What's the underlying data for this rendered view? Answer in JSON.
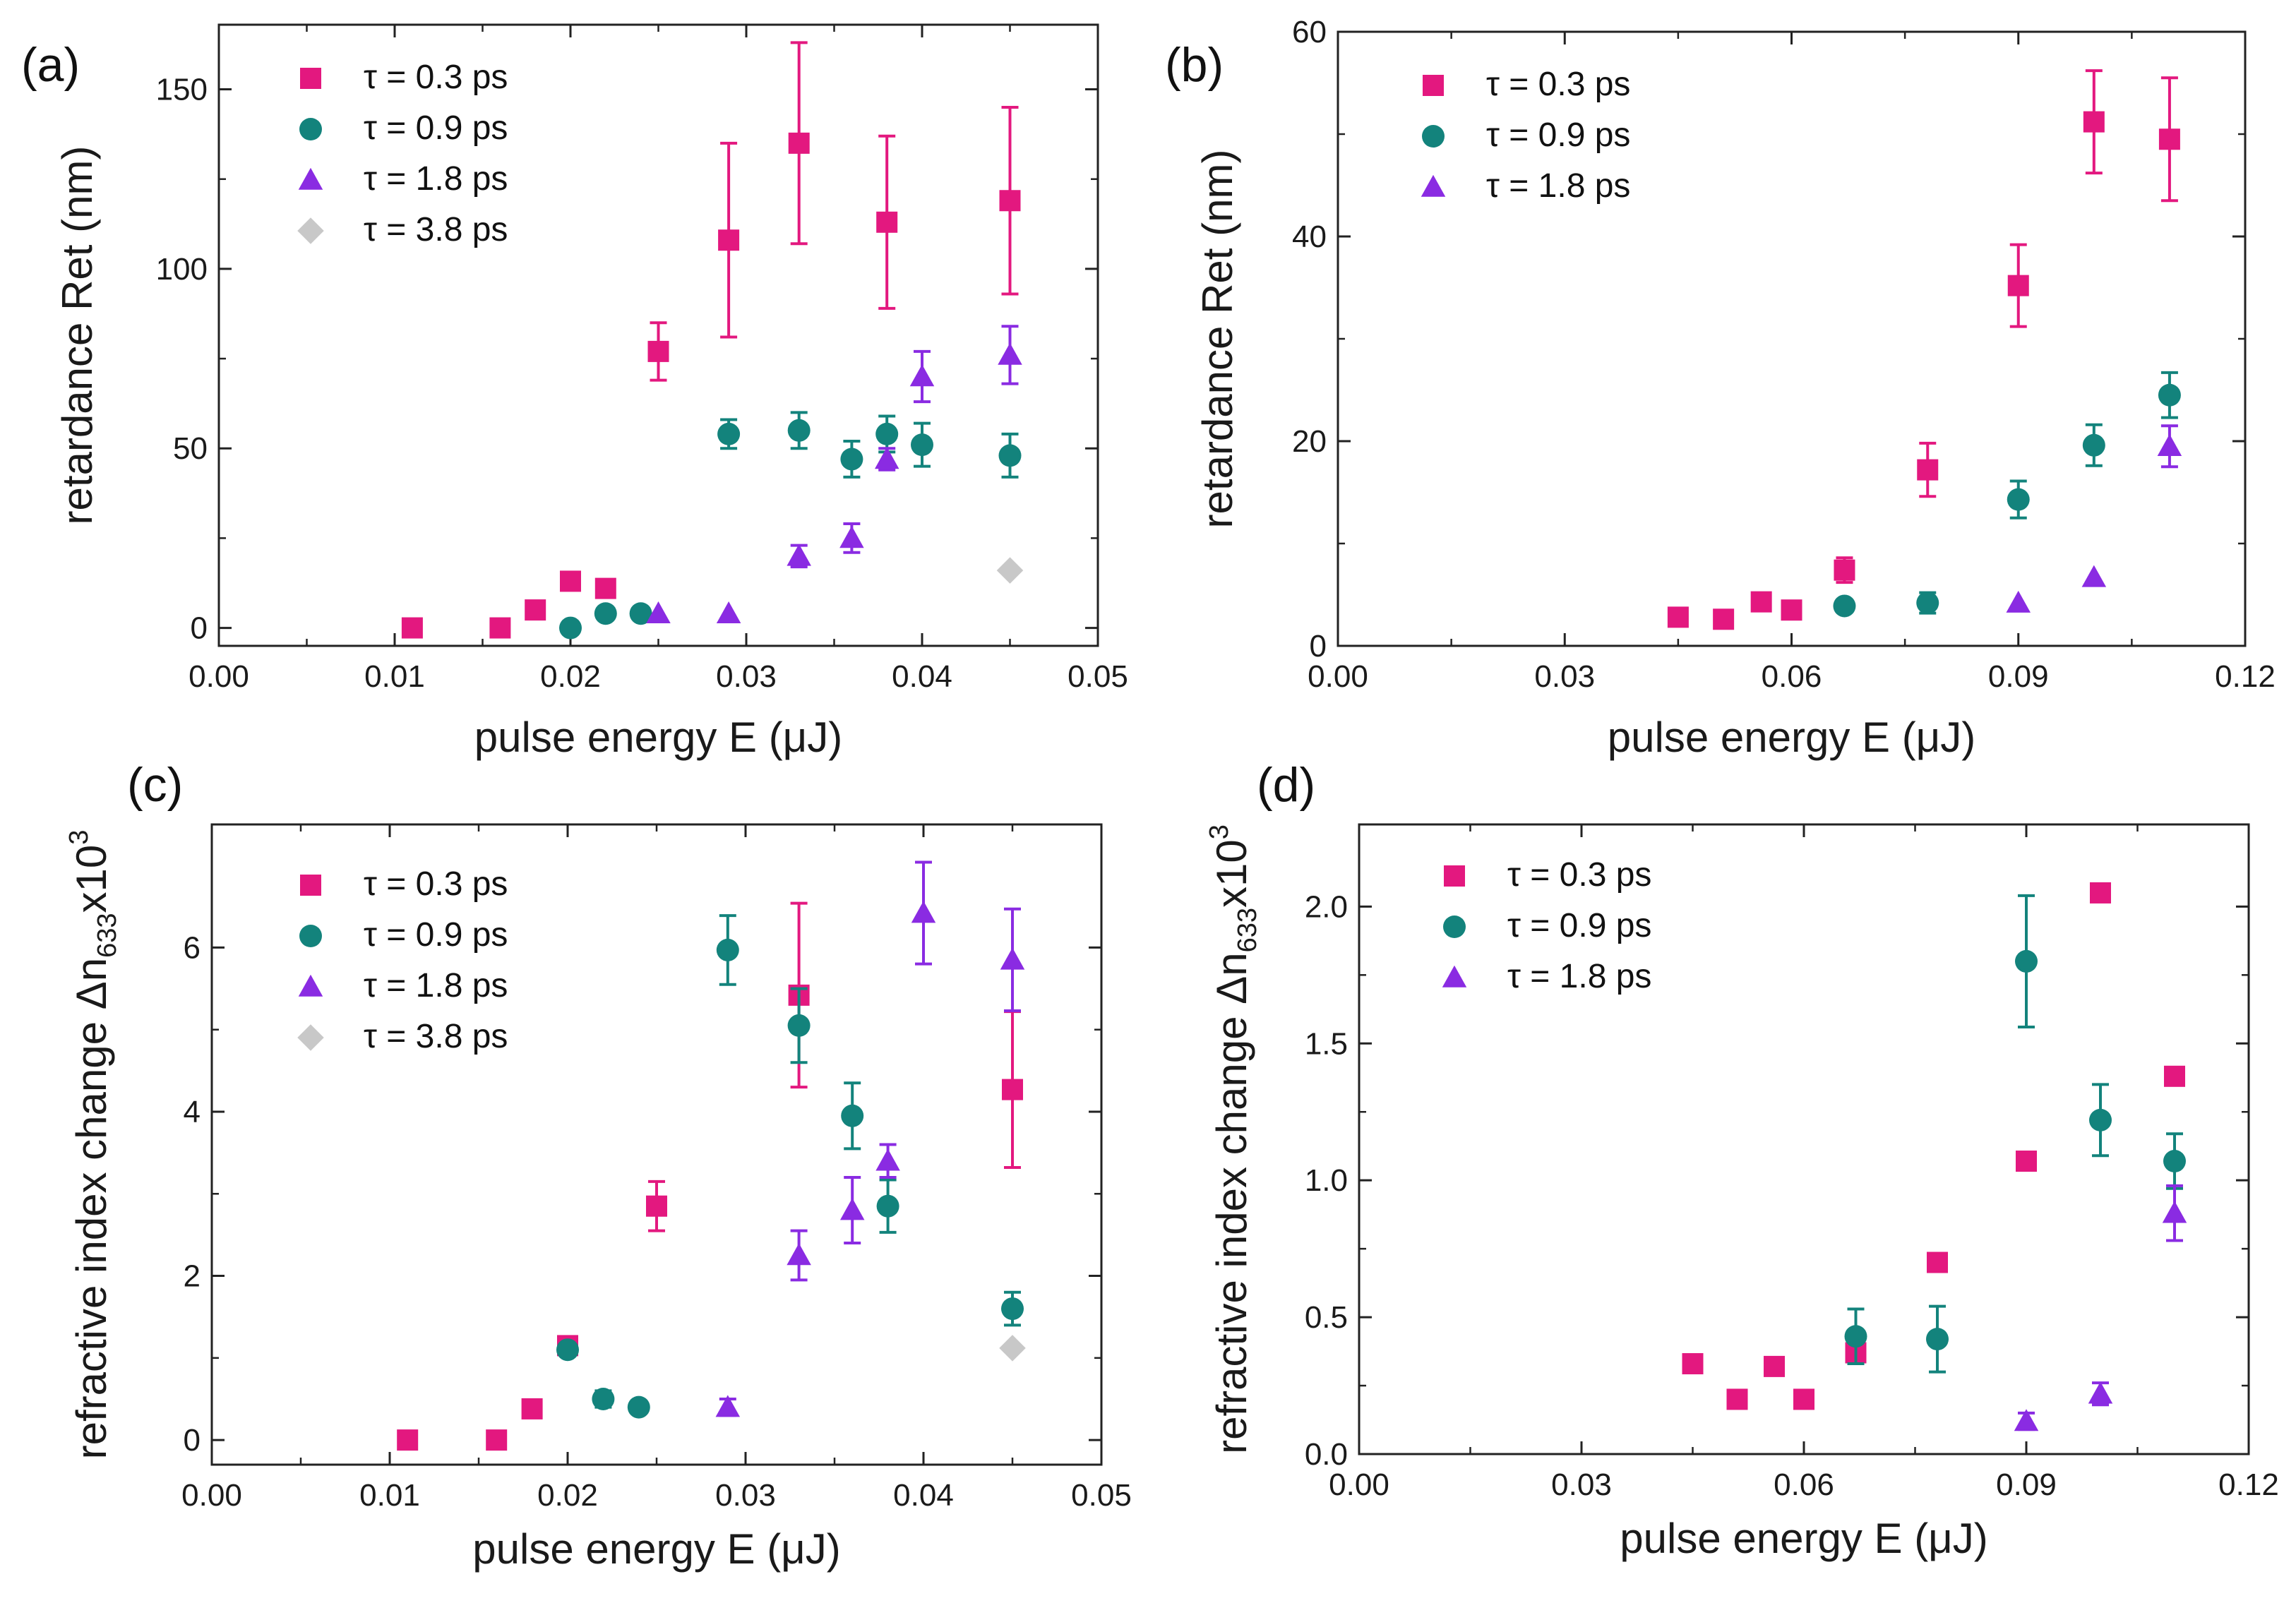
{
  "colors": {
    "tau_0_3": "#e3187f",
    "tau_0_9": "#13837c",
    "tau_1_8": "#8a2be2",
    "tau_3_8": "#c8c8c8"
  },
  "chart_data": [
    {
      "panel_label": "(a)",
      "type": "scatter",
      "xlabel": "pulse energy E (μJ)",
      "ylabel": "retardance Ret (nm)",
      "xlim": [
        0,
        0.05
      ],
      "ylim": [
        -5,
        168
      ],
      "xticks": [
        0.0,
        0.01,
        0.02,
        0.03,
        0.04,
        0.05
      ],
      "xtick_labels": [
        "0.00",
        "0.01",
        "0.02",
        "0.03",
        "0.04",
        "0.05"
      ],
      "yticks": [
        0,
        50,
        100,
        150
      ],
      "ytick_labels": [
        "0",
        "50",
        "100",
        "150"
      ],
      "legend": [
        "τ = 0.3 ps",
        "τ = 0.9 ps",
        "τ = 1.8 ps",
        "τ = 3.8 ps"
      ],
      "series": [
        {
          "name": "τ = 0.3 ps",
          "marker": "square",
          "color_key": "tau_0_3",
          "x": [
            0.011,
            0.016,
            0.018,
            0.02,
            0.022,
            0.025,
            0.029,
            0.033,
            0.038,
            0.045
          ],
          "y": [
            0,
            0,
            5,
            13,
            11,
            77,
            108,
            135,
            113,
            119
          ],
          "err": [
            0,
            0,
            0,
            0,
            0,
            8,
            27,
            28,
            24,
            26
          ]
        },
        {
          "name": "τ = 0.9 ps",
          "marker": "circle",
          "color_key": "tau_0_9",
          "x": [
            0.02,
            0.022,
            0.024,
            0.029,
            0.033,
            0.036,
            0.038,
            0.04,
            0.045
          ],
          "y": [
            0,
            4,
            4,
            54,
            55,
            47,
            54,
            51,
            48
          ],
          "err": [
            0,
            0,
            0,
            4,
            5,
            5,
            5,
            6,
            6
          ]
        },
        {
          "name": "τ = 1.8 ps",
          "marker": "triangle",
          "color_key": "tau_1_8",
          "x": [
            0.025,
            0.029,
            0.033,
            0.036,
            0.038,
            0.04,
            0.045
          ],
          "y": [
            4,
            4,
            20,
            25,
            47,
            70,
            76
          ],
          "err": [
            0,
            0,
            3,
            4,
            3,
            7,
            8
          ]
        },
        {
          "name": "τ = 3.8 ps",
          "marker": "diamond",
          "color_key": "tau_3_8",
          "x": [
            0.045
          ],
          "y": [
            16
          ],
          "err": [
            0
          ]
        }
      ]
    },
    {
      "panel_label": "(b)",
      "type": "scatter",
      "xlabel": "pulse energy E (μJ)",
      "ylabel": "retardance Ret (nm)",
      "xlim": [
        0,
        0.12
      ],
      "ylim": [
        0,
        60
      ],
      "xticks": [
        0.0,
        0.03,
        0.06,
        0.09,
        0.12
      ],
      "xtick_labels": [
        "0.00",
        "0.03",
        "0.06",
        "0.09",
        "0.12"
      ],
      "yticks": [
        0,
        20,
        40,
        60
      ],
      "ytick_labels": [
        "0",
        "20",
        "40",
        "60"
      ],
      "legend": [
        "τ = 0.3 ps",
        "τ = 0.9 ps",
        "τ = 1.8 ps"
      ],
      "series": [
        {
          "name": "τ = 0.3 ps",
          "marker": "square",
          "color_key": "tau_0_3",
          "x": [
            0.045,
            0.051,
            0.056,
            0.06,
            0.067,
            0.078,
            0.09,
            0.1,
            0.11
          ],
          "y": [
            2.8,
            2.6,
            4.3,
            3.5,
            7.4,
            17.2,
            35.2,
            51.2,
            49.5
          ],
          "err": [
            0,
            0,
            0.5,
            0,
            1.2,
            2.6,
            4.0,
            5.0,
            6.0
          ]
        },
        {
          "name": "τ = 0.9 ps",
          "marker": "circle",
          "color_key": "tau_0_9",
          "x": [
            0.067,
            0.078,
            0.09,
            0.1,
            0.11
          ],
          "y": [
            3.9,
            4.2,
            14.3,
            19.6,
            24.5
          ],
          "err": [
            0,
            1.0,
            1.8,
            2.0,
            2.2
          ]
        },
        {
          "name": "τ = 1.8 ps",
          "marker": "triangle",
          "color_key": "tau_1_8",
          "x": [
            0.09,
            0.1,
            0.11
          ],
          "y": [
            4.2,
            6.7,
            19.5
          ],
          "err": [
            0,
            0,
            2.0
          ]
        }
      ]
    },
    {
      "panel_label": "(c)",
      "type": "scatter",
      "xlabel": "pulse energy E (μJ)",
      "ylabel_main": "refractive index change Δn",
      "ylabel_sub": "633",
      "ylabel_mult": "x10",
      "ylabel_sup": "3",
      "xlim": [
        0,
        0.05
      ],
      "ylim": [
        -0.3,
        7.5
      ],
      "xticks": [
        0.0,
        0.01,
        0.02,
        0.03,
        0.04,
        0.05
      ],
      "xtick_labels": [
        "0.00",
        "0.01",
        "0.02",
        "0.03",
        "0.04",
        "0.05"
      ],
      "yticks": [
        0,
        2,
        4,
        6
      ],
      "ytick_labels": [
        "0",
        "2",
        "4",
        "6"
      ],
      "legend": [
        "τ = 0.3 ps",
        "τ = 0.9 ps",
        "τ = 1.8 ps",
        "τ = 3.8 ps"
      ],
      "series": [
        {
          "name": "τ = 0.3 ps",
          "marker": "square",
          "color_key": "tau_0_3",
          "x": [
            0.011,
            0.016,
            0.018,
            0.02,
            0.025,
            0.033,
            0.045
          ],
          "y": [
            0,
            0,
            0.38,
            1.15,
            2.85,
            5.42,
            4.27
          ],
          "err": [
            0,
            0,
            0,
            0.1,
            0.3,
            1.12,
            0.95
          ]
        },
        {
          "name": "τ = 0.9 ps",
          "marker": "circle",
          "color_key": "tau_0_9",
          "x": [
            0.02,
            0.022,
            0.024,
            0.029,
            0.033,
            0.036,
            0.038,
            0.045
          ],
          "y": [
            1.1,
            0.5,
            0.4,
            5.97,
            5.05,
            3.95,
            2.85,
            1.6
          ],
          "err": [
            0,
            0.1,
            0,
            0.42,
            0.45,
            0.4,
            0.32,
            0.2
          ]
        },
        {
          "name": "τ = 1.8 ps",
          "marker": "triangle",
          "color_key": "tau_1_8",
          "x": [
            0.029,
            0.033,
            0.036,
            0.038,
            0.04,
            0.045
          ],
          "y": [
            0.4,
            2.25,
            2.8,
            3.4,
            6.42,
            5.85
          ],
          "err": [
            0.1,
            0.3,
            0.4,
            0.2,
            0.62,
            0.62
          ]
        },
        {
          "name": "τ = 3.8 ps",
          "marker": "diamond",
          "color_key": "tau_3_8",
          "x": [
            0.045
          ],
          "y": [
            1.12
          ],
          "err": [
            0
          ]
        }
      ]
    },
    {
      "panel_label": "(d)",
      "type": "scatter",
      "xlabel": "pulse energy E (μJ)",
      "ylabel_main": "refractive index change Δn",
      "ylabel_sub": "633",
      "ylabel_mult": "x10",
      "ylabel_sup": "3",
      "xlim": [
        0,
        0.12
      ],
      "ylim": [
        0,
        2.3
      ],
      "xticks": [
        0.0,
        0.03,
        0.06,
        0.09,
        0.12
      ],
      "xtick_labels": [
        "0.00",
        "0.03",
        "0.06",
        "0.09",
        "0.12"
      ],
      "yticks": [
        0.0,
        0.5,
        1.0,
        1.5,
        2.0
      ],
      "ytick_labels": [
        "0.0",
        "0.5",
        "1.0",
        "1.5",
        "2.0"
      ],
      "legend": [
        "τ = 0.3 ps",
        "τ = 0.9 ps",
        "τ = 1.8 ps"
      ],
      "series": [
        {
          "name": "τ = 0.3 ps",
          "marker": "square",
          "color_key": "tau_0_3",
          "x": [
            0.045,
            0.051,
            0.056,
            0.06,
            0.067,
            0.078,
            0.09,
            0.1,
            0.11
          ],
          "y": [
            0.33,
            0.2,
            0.32,
            0.2,
            0.37,
            0.7,
            1.07,
            2.05,
            1.38
          ],
          "err": [
            0,
            0,
            0,
            0,
            0,
            0,
            0,
            0,
            0
          ]
        },
        {
          "name": "τ = 0.9 ps",
          "marker": "circle",
          "color_key": "tau_0_9",
          "x": [
            0.067,
            0.078,
            0.09,
            0.1,
            0.11
          ],
          "y": [
            0.43,
            0.42,
            1.8,
            1.22,
            1.07
          ],
          "err": [
            0.1,
            0.12,
            0.24,
            0.13,
            0.1
          ]
        },
        {
          "name": "τ = 1.8 ps",
          "marker": "triangle",
          "color_key": "tau_1_8",
          "x": [
            0.09,
            0.1,
            0.11
          ],
          "y": [
            0.12,
            0.22,
            0.88
          ],
          "err": [
            0.03,
            0.04,
            0.1
          ]
        }
      ]
    }
  ]
}
